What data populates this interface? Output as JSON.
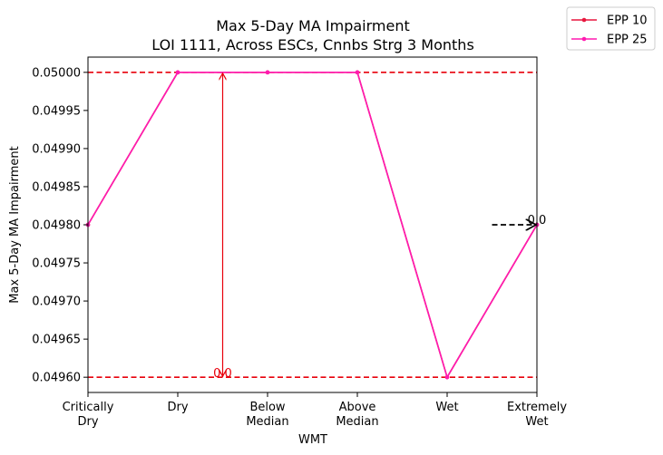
{
  "chart_data": {
    "type": "line",
    "title": "Max 5-Day MA Impairment",
    "subtitle": "LOI 1111, Across ESCs, Cnnbs Strg 3 Months",
    "xlabel": "WMT",
    "ylabel": "Max 5-Day MA Impairment",
    "categories": [
      [
        "Critically",
        "Dry"
      ],
      [
        "Dry"
      ],
      [
        "Below",
        "Median"
      ],
      [
        "Above",
        "Median"
      ],
      [
        "Wet"
      ],
      [
        "Extremely",
        "Wet"
      ]
    ],
    "ylim": [
      0.04958,
      0.05002
    ],
    "yticks": [
      "0.04960",
      "0.04965",
      "0.04970",
      "0.04975",
      "0.04980",
      "0.04985",
      "0.04990",
      "0.04995",
      "0.05000"
    ],
    "series": [
      {
        "name": "EPP 10",
        "color": "#e8173e",
        "values": [
          0.0498,
          0.05,
          0.05,
          0.05,
          0.0496,
          0.0498
        ]
      },
      {
        "name": "EPP 25",
        "color": "#ff1ab0",
        "values": [
          0.0498,
          0.05,
          0.05,
          0.05,
          0.0496,
          0.0498
        ]
      }
    ],
    "hlines": [
      {
        "y": 0.05,
        "color": "#e8000b",
        "style": "dashed"
      },
      {
        "y": 0.0496,
        "color": "#e8000b",
        "style": "dashed"
      }
    ],
    "annotations": [
      {
        "text": "0.0",
        "x": 1.5,
        "y_top": 0.05,
        "y_bottom": 0.0496,
        "color": "#e8000b",
        "type": "double-arrow"
      },
      {
        "text": "0.0",
        "x_from": 4.5,
        "x_to": 5.0,
        "y": 0.0498,
        "color": "#000000",
        "type": "dashed-arrow"
      }
    ],
    "legend": "outside top-right",
    "grid": false
  }
}
